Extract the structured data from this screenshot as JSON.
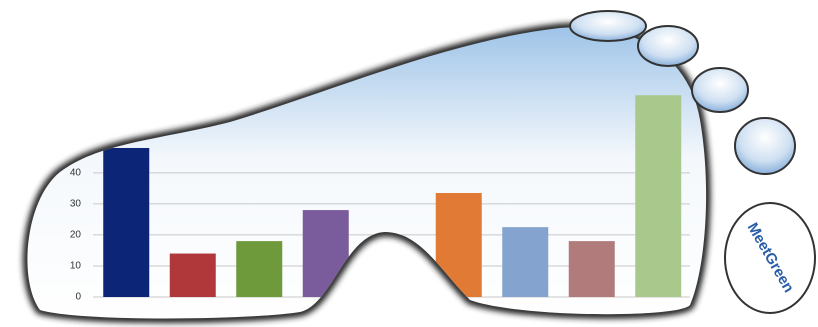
{
  "chart_data": {
    "type": "bar",
    "categories": [
      null,
      null,
      null,
      null,
      null,
      null,
      null,
      null,
      null
    ],
    "values": [
      48,
      14,
      18,
      28,
      null,
      33.5,
      22.5,
      18,
      65
    ],
    "colors": [
      "#0d2577",
      "#b0383a",
      "#6e9a3b",
      "#7a5c9c",
      null,
      "#e07a34",
      "#85a3cf",
      "#b27b7b",
      "#a9c98c"
    ],
    "ylim": [
      0,
      67
    ],
    "yticks": [
      0,
      10,
      20,
      30,
      40
    ],
    "grid": true
  },
  "logo": "MeetGreen"
}
